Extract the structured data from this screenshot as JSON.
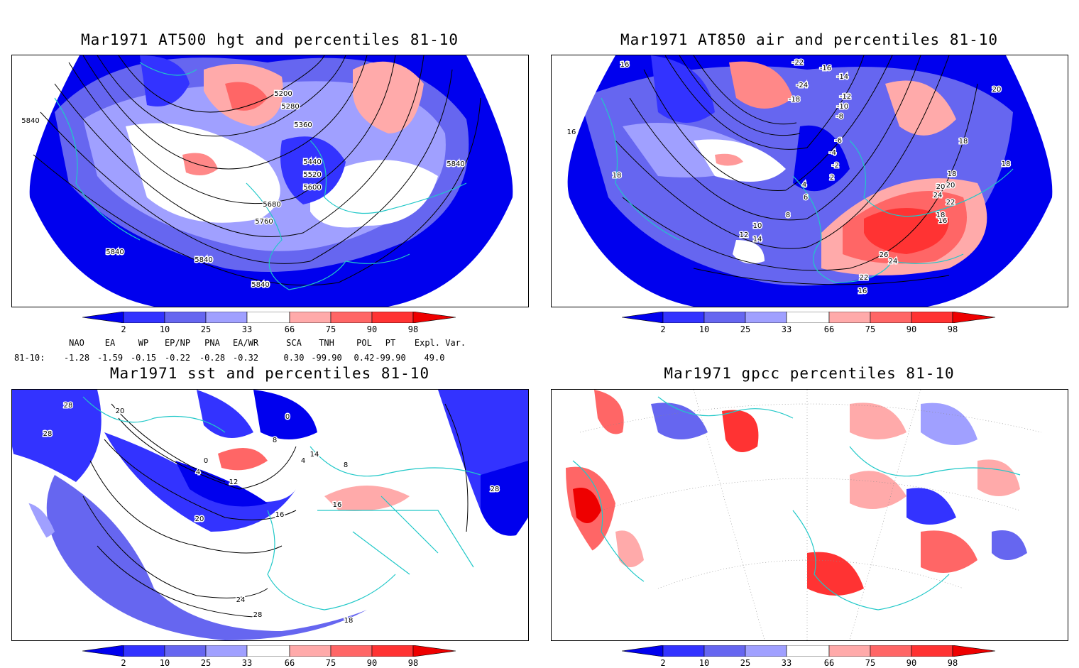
{
  "panels": [
    {
      "title": "Mar1971 AT500 hgt and percentiles 81-10",
      "contour_labels": [
        "5200",
        "5280",
        "5360",
        "5440",
        "5520",
        "5600",
        "5680",
        "5760",
        "5840",
        "5840",
        "5840",
        "5840",
        "5840"
      ]
    },
    {
      "title": "Mar1971 AT850 air and percentiles 81-10",
      "contour_labels": [
        "-22",
        "-16",
        "-14",
        "-24",
        "-18",
        "-12",
        "-10",
        "-8",
        "-6",
        "-4",
        "-2",
        "2",
        "4",
        "6",
        "8",
        "10",
        "12",
        "14",
        "16",
        "16",
        "16",
        "18",
        "18",
        "18",
        "18",
        "20",
        "20",
        "20",
        "22",
        "22",
        "24",
        "24",
        "26",
        "16"
      ]
    },
    {
      "title": "Mar1971 sst and percentiles 81-10",
      "contour_labels": [
        "28",
        "28",
        "20",
        "0",
        "4",
        "8",
        "12",
        "16",
        "20",
        "24",
        "28",
        "28",
        "0",
        "4",
        "8",
        "14",
        "16",
        "18",
        "28"
      ]
    },
    {
      "title": "Mar1971 gpcc percentiles 81-10",
      "contour_labels": []
    }
  ],
  "colorbar": {
    "tick_labels": [
      "2",
      "10",
      "25",
      "33",
      "66",
      "75",
      "90",
      "98"
    ],
    "colors": [
      "#0000ee",
      "#3333ff",
      "#6666f0",
      "#a0a0ff",
      "#ffffff",
      "#ffaaaa",
      "#ff6666",
      "#ff3333",
      "#ee0000"
    ]
  },
  "teleconnections": {
    "header": [
      "NAO",
      "EA",
      "WP",
      "EP/NP",
      "PNA",
      "EA/WR",
      "SCA",
      "TNH",
      "POL",
      "PT",
      "Expl. Var."
    ],
    "row_label": "81-10:",
    "values": [
      "-1.28",
      "-1.59",
      "-0.15",
      "-0.22",
      "-0.28",
      "-0.32",
      "0.30",
      "-99.90",
      "0.42",
      "-99.90",
      "49.0"
    ]
  },
  "colors": {
    "coast": "#20c8c8",
    "contour": "#000000",
    "grid": "#888888"
  }
}
